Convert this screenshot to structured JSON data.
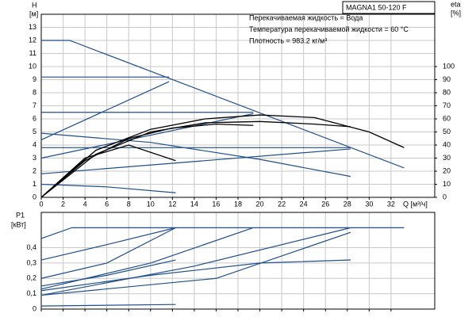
{
  "chart_data": [
    {
      "type": "line",
      "title": "MAGNA1 50-120 F",
      "annotations": [
        "Перекачиваемая жидкость = Вода",
        "Температура перекачиваемой жидкости = 60 °C",
        "Плотность = 983.2 кг/м³"
      ],
      "xlabel": "Q [м³/ч]",
      "ylabel": [
        "H",
        "[м]"
      ],
      "y2label": [
        "eta",
        "[%]"
      ],
      "xlim": [
        0,
        36
      ],
      "xticks": [
        0,
        2,
        4,
        6,
        8,
        10,
        12,
        14,
        16,
        18,
        20,
        22,
        24,
        26,
        28,
        30,
        32
      ],
      "ylim": [
        0,
        14
      ],
      "yticks": [
        0,
        1,
        2,
        3,
        4,
        5,
        6,
        7,
        8,
        9,
        10,
        11,
        12,
        13
      ],
      "y2lim": [
        0,
        140
      ],
      "y2ticks": [
        0,
        10,
        20,
        30,
        40,
        50,
        60,
        70,
        80,
        90,
        100
      ],
      "grid": true,
      "series": [
        {
          "color": "#1f4e8c",
          "x": [
            0,
            2.6,
            33.2
          ],
          "values": [
            12,
            12,
            2.25
          ]
        },
        {
          "color": "#1f4e8c",
          "x": [
            0,
            11.7
          ],
          "values": [
            9.2,
            9.2
          ]
        },
        {
          "color": "#1f4e8c",
          "x": [
            0,
            19.4
          ],
          "values": [
            6.5,
            6.5
          ]
        },
        {
          "color": "#1f4e8c",
          "x": [
            0,
            28.3
          ],
          "values": [
            3.8,
            3.8
          ]
        },
        {
          "color": "#1f4e8c",
          "x": [
            0,
            11.7
          ],
          "values": [
            4.4,
            8.85
          ]
        },
        {
          "color": "#1f4e8c",
          "x": [
            0,
            19.4
          ],
          "values": [
            3.0,
            6.4
          ]
        },
        {
          "color": "#1f4e8c",
          "x": [
            0,
            28.3
          ],
          "values": [
            1.8,
            3.7
          ]
        },
        {
          "color": "#1f4e8c",
          "x": [
            0,
            10,
            20,
            28.3
          ],
          "values": [
            4.9,
            4.2,
            2.9,
            1.6
          ]
        },
        {
          "color": "#1f4e8c",
          "x": [
            0,
            6,
            12.3
          ],
          "values": [
            1.0,
            0.8,
            0.35
          ]
        },
        {
          "color": "#000000",
          "axis": "y2",
          "x": [
            0,
            5,
            10,
            15,
            20,
            25,
            30,
            33.2
          ],
          "values": [
            0,
            36,
            52,
            60,
            63,
            61,
            50,
            38
          ]
        },
        {
          "color": "#000000",
          "axis": "y2",
          "x": [
            0,
            4,
            8,
            12.3
          ],
          "values": [
            0,
            30,
            40,
            28
          ]
        },
        {
          "color": "#000000",
          "axis": "y2",
          "x": [
            0,
            5,
            10,
            15,
            20,
            25,
            28.3
          ],
          "values": [
            0,
            33,
            50,
            57,
            58,
            56,
            54
          ]
        },
        {
          "color": "#000000",
          "axis": "y2",
          "x": [
            0,
            4,
            8,
            12,
            16,
            19.4
          ],
          "values": [
            0,
            28,
            45,
            53,
            56,
            55
          ]
        }
      ]
    },
    {
      "type": "line",
      "ylabel": [
        "P1",
        "[кВт]"
      ],
      "xlim": [
        0,
        36
      ],
      "xticks": [
        0,
        2,
        4,
        6,
        8,
        10,
        12,
        14,
        16,
        18,
        20,
        22,
        24,
        26,
        28,
        30,
        32
      ],
      "ylim": [
        0,
        0.63
      ],
      "yticks": [
        0,
        {
          "value": 0.1,
          "label": "0,1"
        },
        {
          "value": 0.2,
          "label": "0,2"
        },
        {
          "value": 0.3,
          "label": "0,3"
        },
        {
          "value": 0.4,
          "label": "0,4"
        }
      ],
      "grid": true,
      "series": [
        {
          "color": "#1f4e8c",
          "x": [
            0,
            2.8,
            33.2
          ],
          "values": [
            0.46,
            0.53,
            0.53
          ]
        },
        {
          "color": "#1f4e8c",
          "x": [
            0,
            6,
            12.3
          ],
          "values": [
            0.32,
            0.42,
            0.53
          ]
        },
        {
          "color": "#1f4e8c",
          "x": [
            0,
            6,
            12.3
          ],
          "values": [
            0.2,
            0.3,
            0.53
          ]
        },
        {
          "color": "#1f4e8c",
          "x": [
            0,
            10,
            19.4
          ],
          "values": [
            0.13,
            0.3,
            0.53
          ]
        },
        {
          "color": "#1f4e8c",
          "x": [
            0,
            14,
            28.3
          ],
          "values": [
            0.09,
            0.28,
            0.53
          ]
        },
        {
          "color": "#1f4e8c",
          "x": [
            0,
            16,
            28.3
          ],
          "values": [
            0.09,
            0.2,
            0.5
          ]
        },
        {
          "color": "#1f4e8c",
          "x": [
            0,
            10,
            20,
            28.3
          ],
          "values": [
            0.12,
            0.22,
            0.3,
            0.32
          ]
        },
        {
          "color": "#1f4e8c",
          "x": [
            0,
            6,
            12.3
          ],
          "values": [
            0.15,
            0.22,
            0.32
          ]
        },
        {
          "color": "#1f4e8c",
          "x": [
            0,
            12.3
          ],
          "values": [
            0.02,
            0.03
          ]
        }
      ]
    }
  ]
}
